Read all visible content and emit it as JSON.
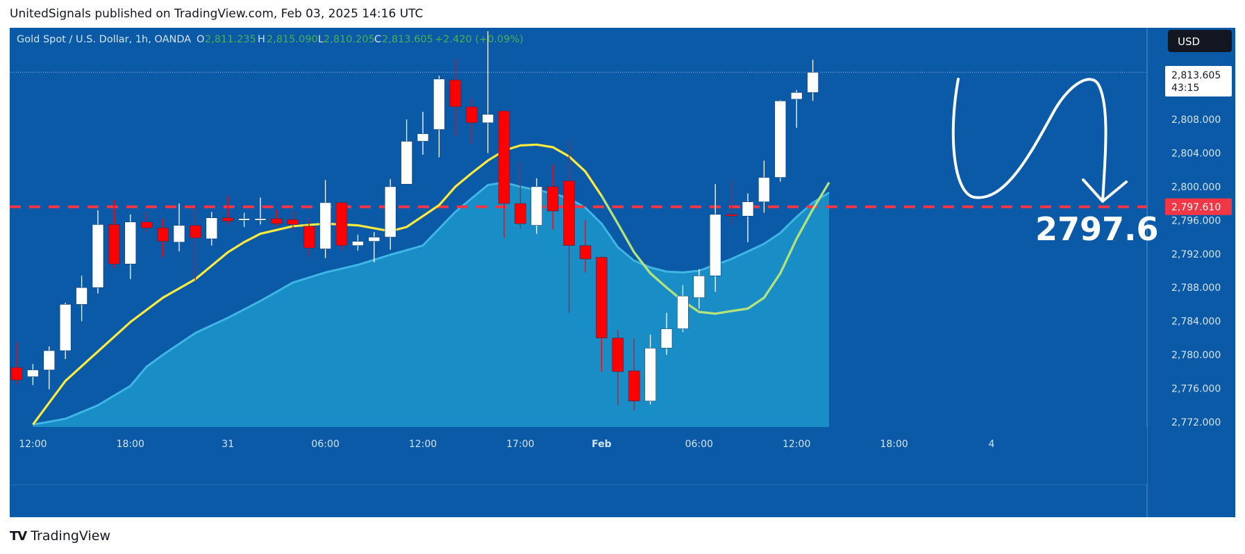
{
  "header": {
    "publisher": "UnitedSignals",
    "published_text": "published on TradingView.com, Feb 03, 2025 14:16 UTC"
  },
  "legend": {
    "symbol": "Gold Spot / U.S. Dollar, 1h, OANDA",
    "o_label": "O",
    "o_value": "2,811.235",
    "h_label": "H",
    "h_value": "2,815.090",
    "l_label": "L",
    "l_value": "2,810.205",
    "c_label": "C",
    "c_value": "2,813.605",
    "change": "+2.420 (+0.09%)"
  },
  "currency_button": "USD",
  "price_tag": {
    "value": "2,813.605",
    "countdown": "43:15"
  },
  "level_tag": "2,797.610",
  "annotation_text": "2797.6",
  "footer": {
    "logo": "TV",
    "brand": "TradingView"
  },
  "colors": {
    "background": "#0a5aa8",
    "bull": "#ffffff",
    "bear": "#ff0000",
    "ma_yellow": "#ffeb3b",
    "cloud": "#1e9fd0",
    "level_line": "#f23645",
    "text_green": "#4caf50"
  },
  "chart_data": {
    "type": "candlestick",
    "y_axis": {
      "ticks": [
        "2,772.000",
        "2,776.000",
        "2,780.000",
        "2,784.000",
        "2,788.000",
        "2,792.000",
        "2,796.000",
        "2,800.000",
        "2,804.000",
        "2,808.000"
      ],
      "tick_values": [
        2772,
        2776,
        2780,
        2784,
        2788,
        2792,
        2796,
        2800,
        2804,
        2808
      ],
      "range": [
        2772,
        2815.6
      ]
    },
    "x_axis": {
      "labels": [
        "12:00",
        "18:00",
        "31",
        "06:00",
        "12:00",
        "17:00",
        "Feb",
        "06:00",
        "12:00",
        "18:00",
        "4"
      ],
      "label_index": [
        1,
        7,
        13,
        19,
        25,
        31,
        36,
        42,
        48,
        54,
        60
      ]
    },
    "horizontal_level": 2797.61,
    "last_price": 2813.605,
    "candles": [
      {
        "o": 2778.5,
        "h": 2781.5,
        "l": 2776.5,
        "c": 2777.0
      },
      {
        "o": 2777.4,
        "h": 2778.9,
        "l": 2776.4,
        "c": 2778.2
      },
      {
        "o": 2778.2,
        "h": 2781.0,
        "l": 2775.9,
        "c": 2780.5
      },
      {
        "o": 2780.5,
        "h": 2786.2,
        "l": 2779.5,
        "c": 2786.0
      },
      {
        "o": 2786.0,
        "h": 2789.4,
        "l": 2784.0,
        "c": 2788.0
      },
      {
        "o": 2788.0,
        "h": 2797.2,
        "l": 2787.3,
        "c": 2795.5
      },
      {
        "o": 2795.5,
        "h": 2798.4,
        "l": 2790.4,
        "c": 2790.8
      },
      {
        "o": 2790.8,
        "h": 2796.7,
        "l": 2789.0,
        "c": 2795.8
      },
      {
        "o": 2795.8,
        "h": 2797.0,
        "l": 2794.6,
        "c": 2795.1
      },
      {
        "o": 2795.1,
        "h": 2796.2,
        "l": 2791.6,
        "c": 2793.5
      },
      {
        "o": 2793.4,
        "h": 2798.0,
        "l": 2792.3,
        "c": 2795.4
      },
      {
        "o": 2795.4,
        "h": 2797.8,
        "l": 2788.8,
        "c": 2793.9
      },
      {
        "o": 2793.8,
        "h": 2797.0,
        "l": 2793.0,
        "c": 2796.3
      },
      {
        "o": 2796.3,
        "h": 2798.9,
        "l": 2795.5,
        "c": 2795.9
      },
      {
        "o": 2796.0,
        "h": 2796.9,
        "l": 2795.2,
        "c": 2796.2
      },
      {
        "o": 2796.0,
        "h": 2798.7,
        "l": 2795.5,
        "c": 2796.2
      },
      {
        "o": 2796.2,
        "h": 2797.3,
        "l": 2795.3,
        "c": 2795.6
      },
      {
        "o": 2796.1,
        "h": 2797.1,
        "l": 2794.8,
        "c": 2795.5
      },
      {
        "o": 2795.3,
        "h": 2796.2,
        "l": 2791.7,
        "c": 2792.7
      },
      {
        "o": 2792.6,
        "h": 2800.8,
        "l": 2791.5,
        "c": 2798.1
      },
      {
        "o": 2798.1,
        "h": 2798.2,
        "l": 2792.5,
        "c": 2793.0
      },
      {
        "o": 2793.0,
        "h": 2794.3,
        "l": 2792.4,
        "c": 2793.5
      },
      {
        "o": 2793.5,
        "h": 2794.6,
        "l": 2791.0,
        "c": 2794.0
      },
      {
        "o": 2794.0,
        "h": 2800.9,
        "l": 2792.5,
        "c": 2800.0
      },
      {
        "o": 2800.3,
        "h": 2808.0,
        "l": 2800.3,
        "c": 2805.4
      },
      {
        "o": 2805.4,
        "h": 2808.9,
        "l": 2803.8,
        "c": 2806.3
      },
      {
        "o": 2806.8,
        "h": 2813.2,
        "l": 2803.5,
        "c": 2812.8
      },
      {
        "o": 2812.7,
        "h": 2815.2,
        "l": 2806.0,
        "c": 2809.5
      },
      {
        "o": 2809.5,
        "h": 2810.5,
        "l": 2805.1,
        "c": 2807.6
      },
      {
        "o": 2807.6,
        "h": 2818.5,
        "l": 2804.0,
        "c": 2808.6
      },
      {
        "o": 2809.0,
        "h": 2809.1,
        "l": 2793.9,
        "c": 2798.0
      },
      {
        "o": 2798.0,
        "h": 2803.0,
        "l": 2795.0,
        "c": 2795.6
      },
      {
        "o": 2795.4,
        "h": 2801.0,
        "l": 2794.4,
        "c": 2800.0
      },
      {
        "o": 2800.0,
        "h": 2802.6,
        "l": 2794.9,
        "c": 2797.1
      },
      {
        "o": 2800.7,
        "h": 2805.5,
        "l": 2785.0,
        "c": 2793.0
      },
      {
        "o": 2793.0,
        "h": 2796.0,
        "l": 2789.8,
        "c": 2791.4
      },
      {
        "o": 2791.6,
        "h": 2791.7,
        "l": 2778.0,
        "c": 2782.0
      },
      {
        "o": 2782.0,
        "h": 2783.0,
        "l": 2774.0,
        "c": 2778.0
      },
      {
        "o": 2778.1,
        "h": 2782.0,
        "l": 2773.4,
        "c": 2774.5
      },
      {
        "o": 2774.5,
        "h": 2782.4,
        "l": 2774.1,
        "c": 2780.8
      },
      {
        "o": 2780.8,
        "h": 2785.0,
        "l": 2780.0,
        "c": 2783.1
      },
      {
        "o": 2783.1,
        "h": 2788.3,
        "l": 2782.7,
        "c": 2787.0
      },
      {
        "o": 2786.8,
        "h": 2790.2,
        "l": 2785.5,
        "c": 2789.4
      },
      {
        "o": 2789.4,
        "h": 2800.3,
        "l": 2787.5,
        "c": 2796.7
      },
      {
        "o": 2796.7,
        "h": 2800.8,
        "l": 2795.4,
        "c": 2796.5
      },
      {
        "o": 2796.5,
        "h": 2799.2,
        "l": 2793.4,
        "c": 2798.2
      },
      {
        "o": 2798.2,
        "h": 2803.1,
        "l": 2796.9,
        "c": 2801.1
      },
      {
        "o": 2801.1,
        "h": 2810.3,
        "l": 2800.6,
        "c": 2810.2
      },
      {
        "o": 2810.4,
        "h": 2811.5,
        "l": 2807.0,
        "c": 2811.2
      },
      {
        "o": 2811.2,
        "h": 2815.1,
        "l": 2810.2,
        "c": 2813.6
      }
    ],
    "ma_line": [
      {
        "i": 1,
        "v": 2771.7
      },
      {
        "i": 3,
        "v": 2776.9
      },
      {
        "i": 5,
        "v": 2780.4
      },
      {
        "i": 7,
        "v": 2783.9
      },
      {
        "i": 9,
        "v": 2786.8
      },
      {
        "i": 11,
        "v": 2789.0
      },
      {
        "i": 13,
        "v": 2792.2
      },
      {
        "i": 14,
        "v": 2793.4
      },
      {
        "i": 15,
        "v": 2794.4
      },
      {
        "i": 17,
        "v": 2795.3
      },
      {
        "i": 19,
        "v": 2795.6
      },
      {
        "i": 21,
        "v": 2795.4
      },
      {
        "i": 23,
        "v": 2794.7
      },
      {
        "i": 24,
        "v": 2795.2
      },
      {
        "i": 25,
        "v": 2796.5
      },
      {
        "i": 26,
        "v": 2797.8
      },
      {
        "i": 27,
        "v": 2800.0
      },
      {
        "i": 28,
        "v": 2801.6
      },
      {
        "i": 29,
        "v": 2803.1
      },
      {
        "i": 30,
        "v": 2804.3
      },
      {
        "i": 31,
        "v": 2804.9
      },
      {
        "i": 32,
        "v": 2805.0
      },
      {
        "i": 33,
        "v": 2804.7
      },
      {
        "i": 34,
        "v": 2803.6
      },
      {
        "i": 35,
        "v": 2801.8
      },
      {
        "i": 36,
        "v": 2798.9
      },
      {
        "i": 37,
        "v": 2795.6
      },
      {
        "i": 38,
        "v": 2792.2
      },
      {
        "i": 39,
        "v": 2789.7
      },
      {
        "i": 40,
        "v": 2788.0
      },
      {
        "i": 41,
        "v": 2786.4
      },
      {
        "i": 42,
        "v": 2785.1
      },
      {
        "i": 43,
        "v": 2784.9
      },
      {
        "i": 44,
        "v": 2785.2
      },
      {
        "i": 45,
        "v": 2785.5
      },
      {
        "i": 46,
        "v": 2786.8
      },
      {
        "i": 47,
        "v": 2789.7
      },
      {
        "i": 48,
        "v": 2793.8
      },
      {
        "i": 49,
        "v": 2797.3
      },
      {
        "i": 50,
        "v": 2800.5
      }
    ],
    "cloud": [
      {
        "i": 1,
        "v": 2771.7
      },
      {
        "i": 3,
        "v": 2772.4
      },
      {
        "i": 5,
        "v": 2774.0
      },
      {
        "i": 7,
        "v": 2776.3
      },
      {
        "i": 8,
        "v": 2778.6
      },
      {
        "i": 9,
        "v": 2780.0
      },
      {
        "i": 11,
        "v": 2782.6
      },
      {
        "i": 13,
        "v": 2784.4
      },
      {
        "i": 15,
        "v": 2786.4
      },
      {
        "i": 17,
        "v": 2788.6
      },
      {
        "i": 19,
        "v": 2789.8
      },
      {
        "i": 21,
        "v": 2790.7
      },
      {
        "i": 23,
        "v": 2791.9
      },
      {
        "i": 25,
        "v": 2793.0
      },
      {
        "i": 26,
        "v": 2795.0
      },
      {
        "i": 27,
        "v": 2797.0
      },
      {
        "i": 28,
        "v": 2798.6
      },
      {
        "i": 29,
        "v": 2800.2
      },
      {
        "i": 30,
        "v": 2800.5
      },
      {
        "i": 31,
        "v": 2800.0
      },
      {
        "i": 32,
        "v": 2799.6
      },
      {
        "i": 33,
        "v": 2799.2
      },
      {
        "i": 34,
        "v": 2798.6
      },
      {
        "i": 35,
        "v": 2797.5
      },
      {
        "i": 36,
        "v": 2795.6
      },
      {
        "i": 37,
        "v": 2792.8
      },
      {
        "i": 38,
        "v": 2791.2
      },
      {
        "i": 39,
        "v": 2790.4
      },
      {
        "i": 40,
        "v": 2789.9
      },
      {
        "i": 41,
        "v": 2789.8
      },
      {
        "i": 42,
        "v": 2790.0
      },
      {
        "i": 43,
        "v": 2790.7
      },
      {
        "i": 44,
        "v": 2791.4
      },
      {
        "i": 45,
        "v": 2792.3
      },
      {
        "i": 46,
        "v": 2793.2
      },
      {
        "i": 47,
        "v": 2794.5
      },
      {
        "i": 48,
        "v": 2796.4
      },
      {
        "i": 49,
        "v": 2798.1
      },
      {
        "i": 50,
        "v": 2799.3
      }
    ]
  }
}
